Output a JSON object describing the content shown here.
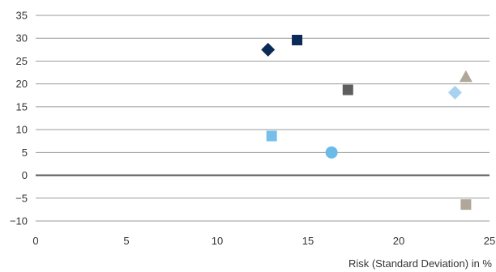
{
  "chart_data": {
    "type": "scatter",
    "title": "",
    "xlabel": "Risk (Standard Deviation) in %",
    "ylabel": "",
    "xlim": [
      0,
      25
    ],
    "ylim": [
      -10,
      35
    ],
    "x_ticks": [
      "0",
      "5",
      "10",
      "15",
      "20",
      "25"
    ],
    "y_ticks": [
      "35",
      "30",
      "25",
      "20",
      "15",
      "10",
      "5",
      "0",
      "−5",
      "−10"
    ],
    "grid": "horizontal",
    "legend": "none",
    "points": [
      {
        "x": 12.8,
        "y": 27.5,
        "marker": "diamond",
        "color": "#0b2a57"
      },
      {
        "x": 14.4,
        "y": 29.6,
        "marker": "square",
        "color": "#0b2a57"
      },
      {
        "x": 17.2,
        "y": 18.7,
        "marker": "square",
        "color": "#5e5e5e"
      },
      {
        "x": 23.7,
        "y": 21.5,
        "marker": "triangle",
        "color": "#b0a69a"
      },
      {
        "x": 23.1,
        "y": 18.1,
        "marker": "diamond",
        "color": "#a8d3f0"
      },
      {
        "x": 13.0,
        "y": 8.6,
        "marker": "square",
        "color": "#77bfea"
      },
      {
        "x": 16.3,
        "y": 5.0,
        "marker": "circle",
        "color": "#6bbbe8"
      },
      {
        "x": 23.7,
        "y": -6.4,
        "marker": "square",
        "color": "#b0a69a"
      }
    ]
  }
}
